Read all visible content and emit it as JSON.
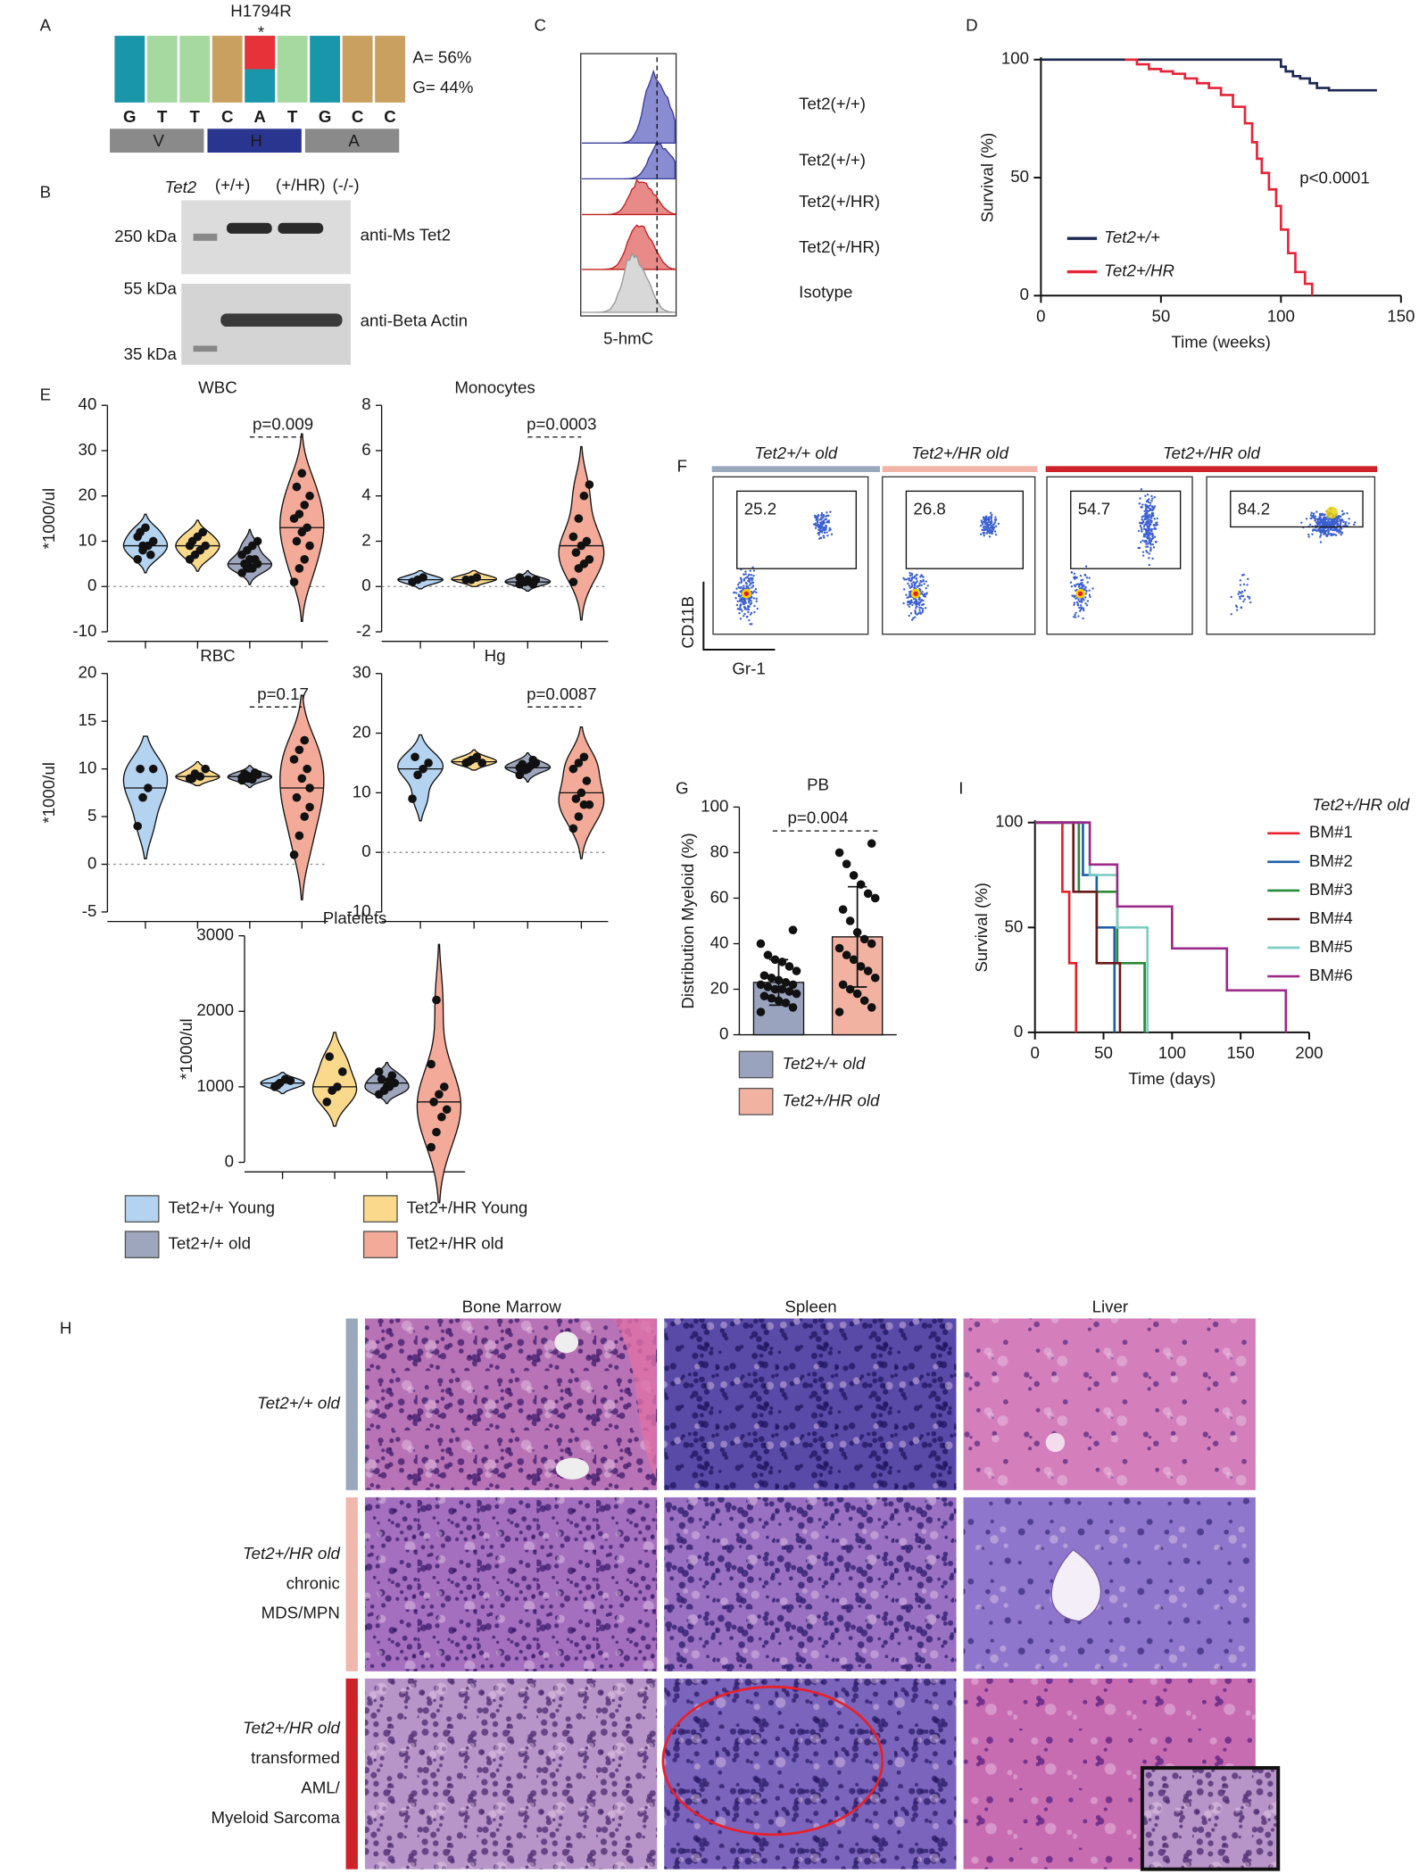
{
  "panel_labels": [
    "A",
    "B",
    "C",
    "D",
    "E",
    "F",
    "G",
    "H",
    "I"
  ],
  "sequence": {
    "mutation": "H1794R",
    "marker": "*",
    "bases": [
      "G",
      "T",
      "T",
      "C",
      "A",
      "T",
      "G",
      "C",
      "C"
    ],
    "amino_acids": [
      "V",
      "H",
      "A"
    ],
    "frequencies": [
      "A= 56%",
      "G= 44%"
    ]
  },
  "western_blot": {
    "gene": "Tet2",
    "genotypes": [
      "(+/+)",
      "(+/HR)",
      "(-/-)"
    ],
    "size_markers": [
      "250 kDa",
      "55 kDa",
      "35 kDa"
    ],
    "antibodies": [
      "anti-Ms Tet2",
      "anti-Beta Actin"
    ]
  },
  "flow_histogram": {
    "samples": [
      "Tet2(+/+)",
      "Tet2(+/+)",
      "Tet2(+/HR)",
      "Tet2(+/HR)",
      "Isotype"
    ],
    "x_label": "5-hmC"
  },
  "blood_counts": {
    "legend": [
      {
        "name": "Tet2+/+ Young",
        "color": "#b3d3f1"
      },
      {
        "name": "Tet2+/HR Young",
        "color": "#fbd98c"
      },
      {
        "name": "Tet2+/+ old",
        "color": "#9ea6bd"
      },
      {
        "name": "Tet2+/HR old",
        "color": "#f3aa98"
      }
    ]
  },
  "flow_plots": {
    "groups": [
      {
        "name": "Tet2+/+ old",
        "color": "#9aa8be"
      },
      {
        "name": "Tet2+/HR old",
        "color": "#f2b4a6"
      },
      {
        "name": "Tet2+/HR old",
        "color": "#cc2228"
      }
    ],
    "gate_percentages": [
      "25.2",
      "26.8",
      "54.7",
      "84.2"
    ],
    "y_label": "CD11B",
    "x_label": "Gr-1"
  },
  "histology": {
    "columns": [
      "Bone Marrow",
      "Spleen",
      "Liver"
    ],
    "rows": [
      {
        "lines": [
          "Tet2+/+ old"
        ],
        "color": "#9aa8be"
      },
      {
        "lines": [
          "Tet2+/HR old",
          "chronic",
          "MDS/MPN"
        ],
        "color": "#f0b8ac"
      },
      {
        "lines": [
          "Tet2+/HR old",
          "transformed",
          "AML/",
          "Myeloid Sarcoma"
        ],
        "color": "#cc2228"
      }
    ]
  },
  "chart_data": [
    {
      "type": "step",
      "x_label": "Time (weeks)",
      "y_label": "Survival (%)",
      "annotation": "p<0.0001",
      "xlim": [
        0,
        150
      ],
      "xticks": [
        0,
        50,
        100,
        150
      ],
      "ylim": [
        0,
        100
      ],
      "yticks": [
        0,
        50,
        100
      ],
      "series": [
        {
          "name": "Tet2+/+",
          "color": "#1b2850",
          "x": [
            0,
            100,
            102,
            105,
            108,
            112,
            115,
            120,
            140
          ],
          "values": [
            100,
            97,
            95,
            93,
            92,
            90,
            88,
            87,
            87
          ]
        },
        {
          "name": "Tet2+/HR",
          "color": "#e4253a",
          "x": [
            35,
            40,
            45,
            50,
            55,
            60,
            65,
            70,
            75,
            80,
            85,
            88,
            90,
            92,
            95,
            98,
            100,
            103,
            106,
            110,
            113
          ],
          "values": [
            100,
            98,
            96,
            95,
            94,
            92,
            90,
            88,
            85,
            80,
            73,
            65,
            58,
            52,
            45,
            38,
            28,
            18,
            10,
            5,
            0
          ]
        }
      ]
    },
    {
      "type": "violin",
      "title": "WBC",
      "y_label": "*1000/ul",
      "annotation": "p=0.009",
      "annotation_color": "#e02020",
      "ylim": [
        -10,
        40
      ],
      "yticks": [
        -10,
        0,
        10,
        20,
        30,
        40
      ],
      "series": [
        {
          "values": [
            6,
            8,
            9,
            10,
            12,
            13,
            7,
            11,
            9
          ]
        },
        {
          "values": [
            6,
            7,
            8,
            9,
            10,
            11,
            12,
            9
          ]
        },
        {
          "values": [
            3,
            4,
            4,
            5,
            5,
            6,
            6,
            7,
            8,
            9,
            10,
            5,
            4
          ]
        },
        {
          "values": [
            1,
            4,
            6,
            9,
            10,
            12,
            13,
            15,
            16,
            18,
            20,
            22,
            25
          ]
        }
      ]
    },
    {
      "type": "violin",
      "title": "Monocytes",
      "y_label": "",
      "annotation": "p=0.0003",
      "annotation_color": "#e02020",
      "ylim": [
        -2,
        8
      ],
      "yticks": [
        -2,
        0,
        2,
        4,
        6,
        8
      ],
      "series": [
        {
          "values": [
            0.2,
            0.3,
            0.4
          ]
        },
        {
          "values": [
            0.3,
            0.3,
            0.4
          ]
        },
        {
          "values": [
            0.1,
            0.2,
            0.2,
            0.3,
            0.2,
            0.3,
            0.1,
            0.4,
            0.2
          ]
        },
        {
          "values": [
            0.2,
            0.8,
            1,
            1.2,
            1.5,
            1.8,
            2,
            2.2,
            3,
            4,
            4.5
          ]
        }
      ]
    },
    {
      "type": "violin",
      "title": "RBC",
      "y_label": "*1000/ul",
      "annotation": "p=0.17",
      "annotation_color": "#1a1a1a",
      "ylim": [
        -5,
        20
      ],
      "yticks": [
        -5,
        0,
        5,
        10,
        15,
        20
      ],
      "series": [
        {
          "values": [
            4,
            7,
            8,
            10,
            10
          ]
        },
        {
          "values": [
            9,
            9.5,
            9.2,
            10,
            9
          ]
        },
        {
          "values": [
            8.8,
            9,
            9.2,
            9.4,
            9.5,
            9,
            9.6,
            9.1,
            9.3,
            8.9
          ]
        },
        {
          "values": [
            1,
            3,
            5,
            6,
            7,
            9,
            10,
            11,
            12,
            13,
            8
          ]
        }
      ]
    },
    {
      "type": "violin",
      "title": "Hg",
      "y_label": "",
      "annotation": "p=0.0087",
      "annotation_color": "#e02020",
      "ylim": [
        -10,
        30
      ],
      "yticks": [
        -10,
        0,
        10,
        20,
        30
      ],
      "series": [
        {
          "values": [
            9,
            13,
            14,
            15,
            16
          ]
        },
        {
          "values": [
            15,
            15.5,
            16,
            15,
            15.2
          ]
        },
        {
          "values": [
            13,
            14,
            14.5,
            15,
            14.8,
            14,
            15.5,
            14.2,
            13.8
          ]
        },
        {
          "values": [
            4,
            6,
            8,
            8,
            9,
            10,
            12,
            14,
            15,
            16
          ]
        }
      ]
    },
    {
      "type": "violin",
      "title": "Platelets",
      "y_label": "*1000/ul",
      "ylim": [
        0,
        3000
      ],
      "yticks": [
        0,
        1000,
        2000,
        3000
      ],
      "series": [
        {
          "values": [
            1000,
            1050,
            1100,
            1080,
            1020
          ]
        },
        {
          "values": [
            800,
            950,
            1000,
            1200,
            1400
          ]
        },
        {
          "values": [
            900,
            950,
            1000,
            1050,
            1100,
            1000,
            1150,
            1200,
            950,
            1080
          ]
        },
        {
          "values": [
            200,
            400,
            600,
            700,
            800,
            900,
            1000,
            1300,
            2150
          ]
        }
      ]
    },
    {
      "type": "bar",
      "title": "PB",
      "y_label": "Distribution Myeloid (%)",
      "annotation": "p=0.004",
      "annotation_color": "#e02020",
      "ylim": [
        0,
        100
      ],
      "yticks": [
        0,
        20,
        40,
        60,
        80,
        100
      ],
      "series": [
        {
          "name": "Tet2+/+ old",
          "color": "#9aa3be",
          "value": 23,
          "error": 10,
          "points": [
            10,
            12,
            14,
            15,
            16,
            17,
            18,
            19,
            20,
            20,
            21,
            22,
            22,
            23,
            24,
            25,
            26,
            28,
            30,
            32,
            33,
            35,
            40,
            46
          ]
        },
        {
          "name": "Tet2+/HR old",
          "color": "#f2b2a2",
          "value": 43,
          "error": 22,
          "points": [
            10,
            12,
            15,
            18,
            20,
            22,
            25,
            28,
            30,
            33,
            35,
            38,
            40,
            42,
            45,
            50,
            55,
            60,
            62,
            66,
            70,
            75,
            80,
            84
          ]
        }
      ]
    },
    {
      "type": "step",
      "x_label": "Time (days)",
      "y_label": "Survival (%)",
      "legend_title": "Tet2+/HR old",
      "xlim": [
        0,
        200
      ],
      "xticks": [
        0,
        50,
        100,
        150,
        200
      ],
      "ylim": [
        0,
        100
      ],
      "yticks": [
        0,
        50,
        100
      ],
      "series": [
        {
          "name": "BM#1",
          "color": "#e8202a",
          "x": [
            0,
            20,
            25,
            30
          ],
          "values": [
            100,
            67,
            33,
            0
          ]
        },
        {
          "name": "BM#2",
          "color": "#1f5fa8",
          "x": [
            0,
            35,
            45,
            58
          ],
          "values": [
            100,
            75,
            50,
            0
          ]
        },
        {
          "name": "BM#3",
          "color": "#2a8a3c",
          "x": [
            0,
            32,
            60,
            80
          ],
          "values": [
            100,
            67,
            33,
            0
          ]
        },
        {
          "name": "BM#4",
          "color": "#6b1a1a",
          "x": [
            0,
            28,
            45,
            62
          ],
          "values": [
            100,
            67,
            33,
            0
          ]
        },
        {
          "name": "BM#5",
          "color": "#7fcdc0",
          "x": [
            0,
            40,
            60,
            82
          ],
          "values": [
            100,
            75,
            50,
            0
          ]
        },
        {
          "name": "BM#6",
          "color": "#9b2a8a",
          "x": [
            0,
            40,
            60,
            100,
            140,
            183
          ],
          "values": [
            100,
            80,
            60,
            40,
            20,
            0
          ]
        }
      ]
    }
  ]
}
